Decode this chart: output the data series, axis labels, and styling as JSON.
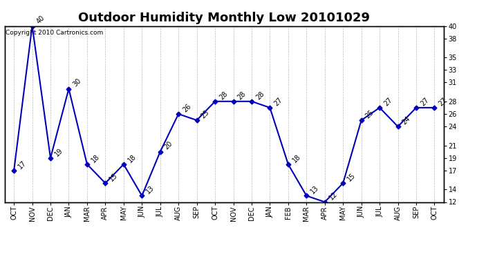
{
  "title": "Outdoor Humidity Monthly Low 20101029",
  "copyright": "Copyright 2010 Cartronics.com",
  "x_labels": [
    "OCT",
    "NOV",
    "DEC",
    "JAN",
    "MAR",
    "APR",
    "MAY",
    "JUN",
    "JUL",
    "AUG",
    "SEP",
    "OCT",
    "NOV",
    "DEC",
    "JAN",
    "FEB",
    "MAR",
    "APR",
    "MAY",
    "JUN",
    "JUL",
    "AUG",
    "SEP",
    "OCT"
  ],
  "y_vals": [
    17,
    40,
    19,
    30,
    18,
    15,
    18,
    13,
    20,
    26,
    25,
    28,
    28,
    28,
    27,
    18,
    13,
    12,
    15,
    25,
    27,
    24,
    27,
    27
  ],
  "pt_labels": [
    "17",
    "40",
    "19",
    "30",
    "18",
    "15",
    "18",
    "13",
    "20",
    "26",
    "25",
    "28",
    "28",
    "28",
    "27",
    "18",
    "13",
    "12",
    "15",
    "25",
    "27",
    "24",
    "27",
    "27"
  ],
  "y_ticks": [
    12,
    14,
    17,
    19,
    21,
    24,
    26,
    28,
    31,
    33,
    35,
    38,
    40
  ],
  "y_min": 12,
  "y_max": 40,
  "line_color": "#0000bb",
  "bg_color": "#ffffff",
  "grid_color": "#aaaaaa",
  "title_fontsize": 13,
  "tick_fontsize": 7,
  "pt_fontsize": 7,
  "copyright_fontsize": 6.5
}
